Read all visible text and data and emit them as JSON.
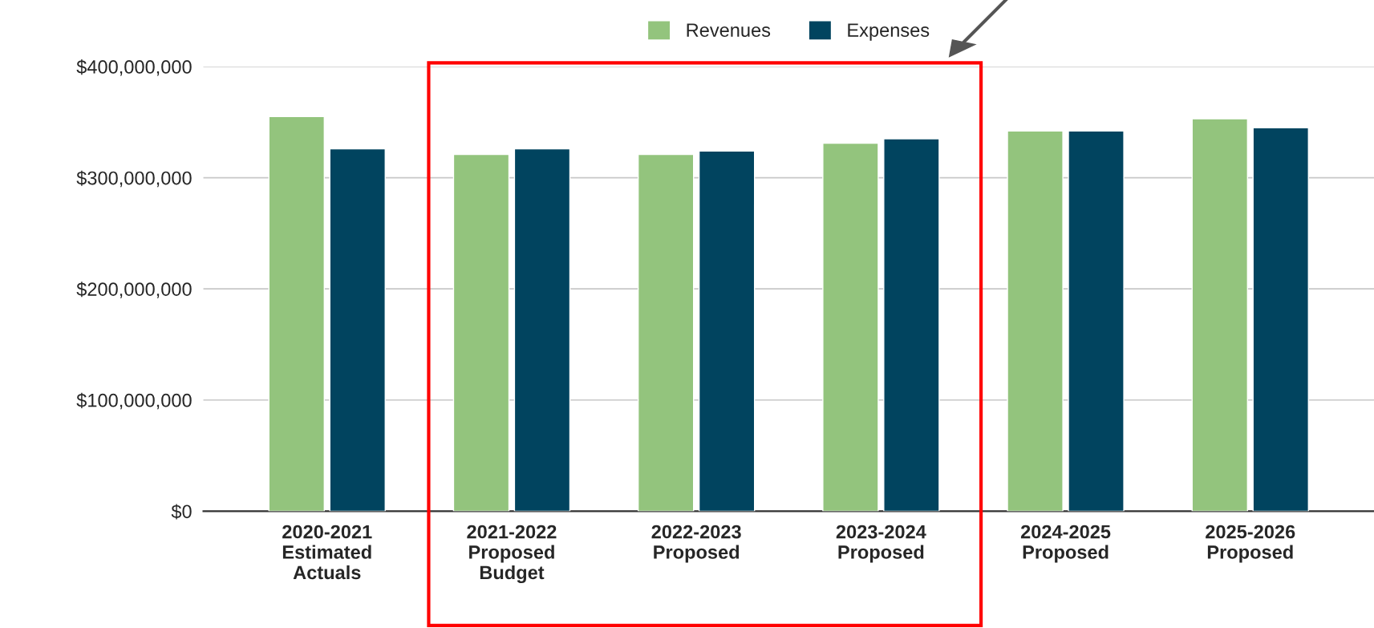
{
  "chart_data": {
    "type": "bar",
    "categories": [
      "2020-2021\nEstimated\nActuals",
      "2021-2022\nProposed\nBudget",
      "2022-2023\nProposed",
      "2023-2024\nProposed",
      "2024-2025\nProposed",
      "2025-2026\nProposed"
    ],
    "series": [
      {
        "name": "Revenues",
        "color": "#93c47d",
        "values": [
          355000000,
          321000000,
          321000000,
          331000000,
          342000000,
          353000000
        ]
      },
      {
        "name": "Expenses",
        "color": "#01445f",
        "values": [
          326000000,
          326000000,
          324000000,
          335000000,
          342000000,
          345000000
        ]
      }
    ],
    "ylim": [
      0,
      400000000
    ],
    "yticks": [
      {
        "value": 0,
        "label": "$0"
      },
      {
        "value": 100000000,
        "label": "$100,000,000"
      },
      {
        "value": 200000000,
        "label": "$200,000,000"
      },
      {
        "value": 300000000,
        "label": "$300,000,000"
      },
      {
        "value": 400000000,
        "label": "$400,000,000"
      }
    ],
    "grid": "y",
    "legend": "top"
  }
}
